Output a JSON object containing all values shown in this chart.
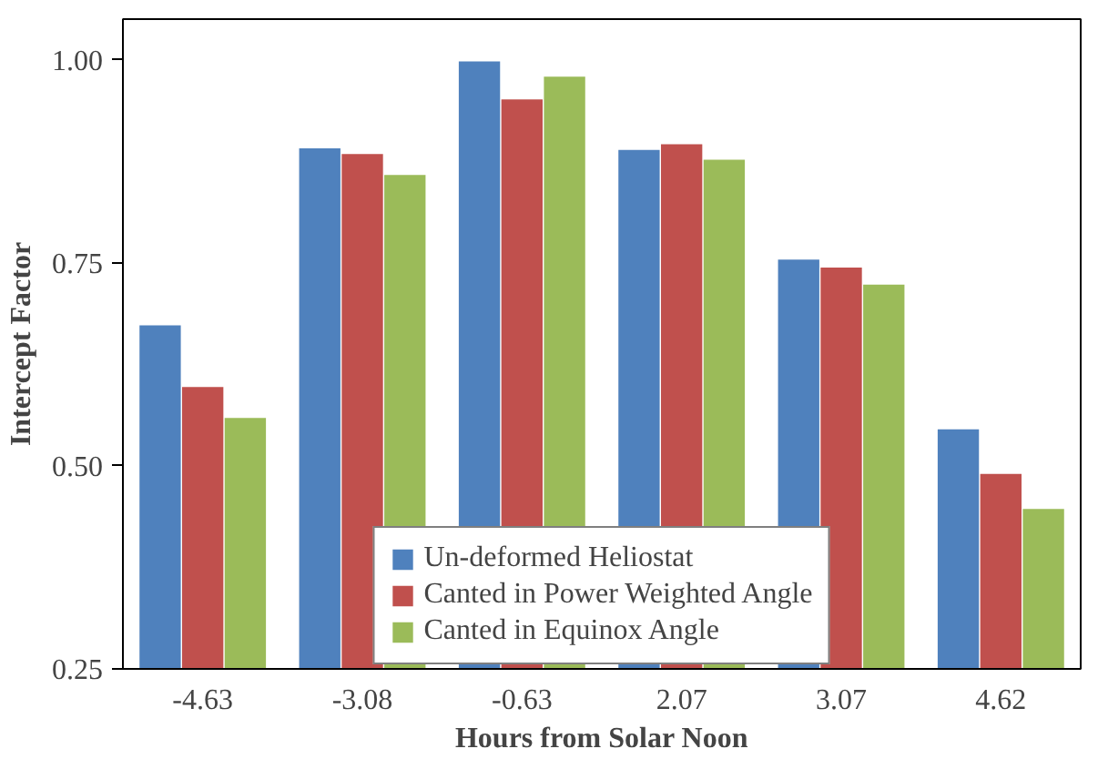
{
  "chart_data": {
    "type": "bar",
    "xlabel": "Hours from Solar Noon",
    "ylabel": "Intercept Factor",
    "categories": [
      "-4.63",
      "-3.08",
      "-0.63",
      "2.07",
      "3.07",
      "4.62"
    ],
    "series": [
      {
        "name": "Un-deformed Heliostat",
        "color": "#4f81bd",
        "values": [
          0.673,
          0.891,
          0.998,
          0.889,
          0.754,
          0.545
        ]
      },
      {
        "name": "Canted in Power Weighted Angle",
        "color": "#c0504d",
        "values": [
          0.597,
          0.884,
          0.951,
          0.896,
          0.744,
          0.49
        ]
      },
      {
        "name": "Canted in Equinox Angle",
        "color": "#9bbb59",
        "values": [
          0.559,
          0.858,
          0.979,
          0.877,
          0.723,
          0.447
        ]
      }
    ],
    "ylim": [
      0.25,
      1.05
    ],
    "yticks": [
      {
        "value": 0.25,
        "label": "0.25"
      },
      {
        "value": 0.5,
        "label": "0.50"
      },
      {
        "value": 0.75,
        "label": "0.75"
      },
      {
        "value": 1.0,
        "label": "1.00"
      }
    ],
    "grid": false,
    "legend": "bottom"
  }
}
